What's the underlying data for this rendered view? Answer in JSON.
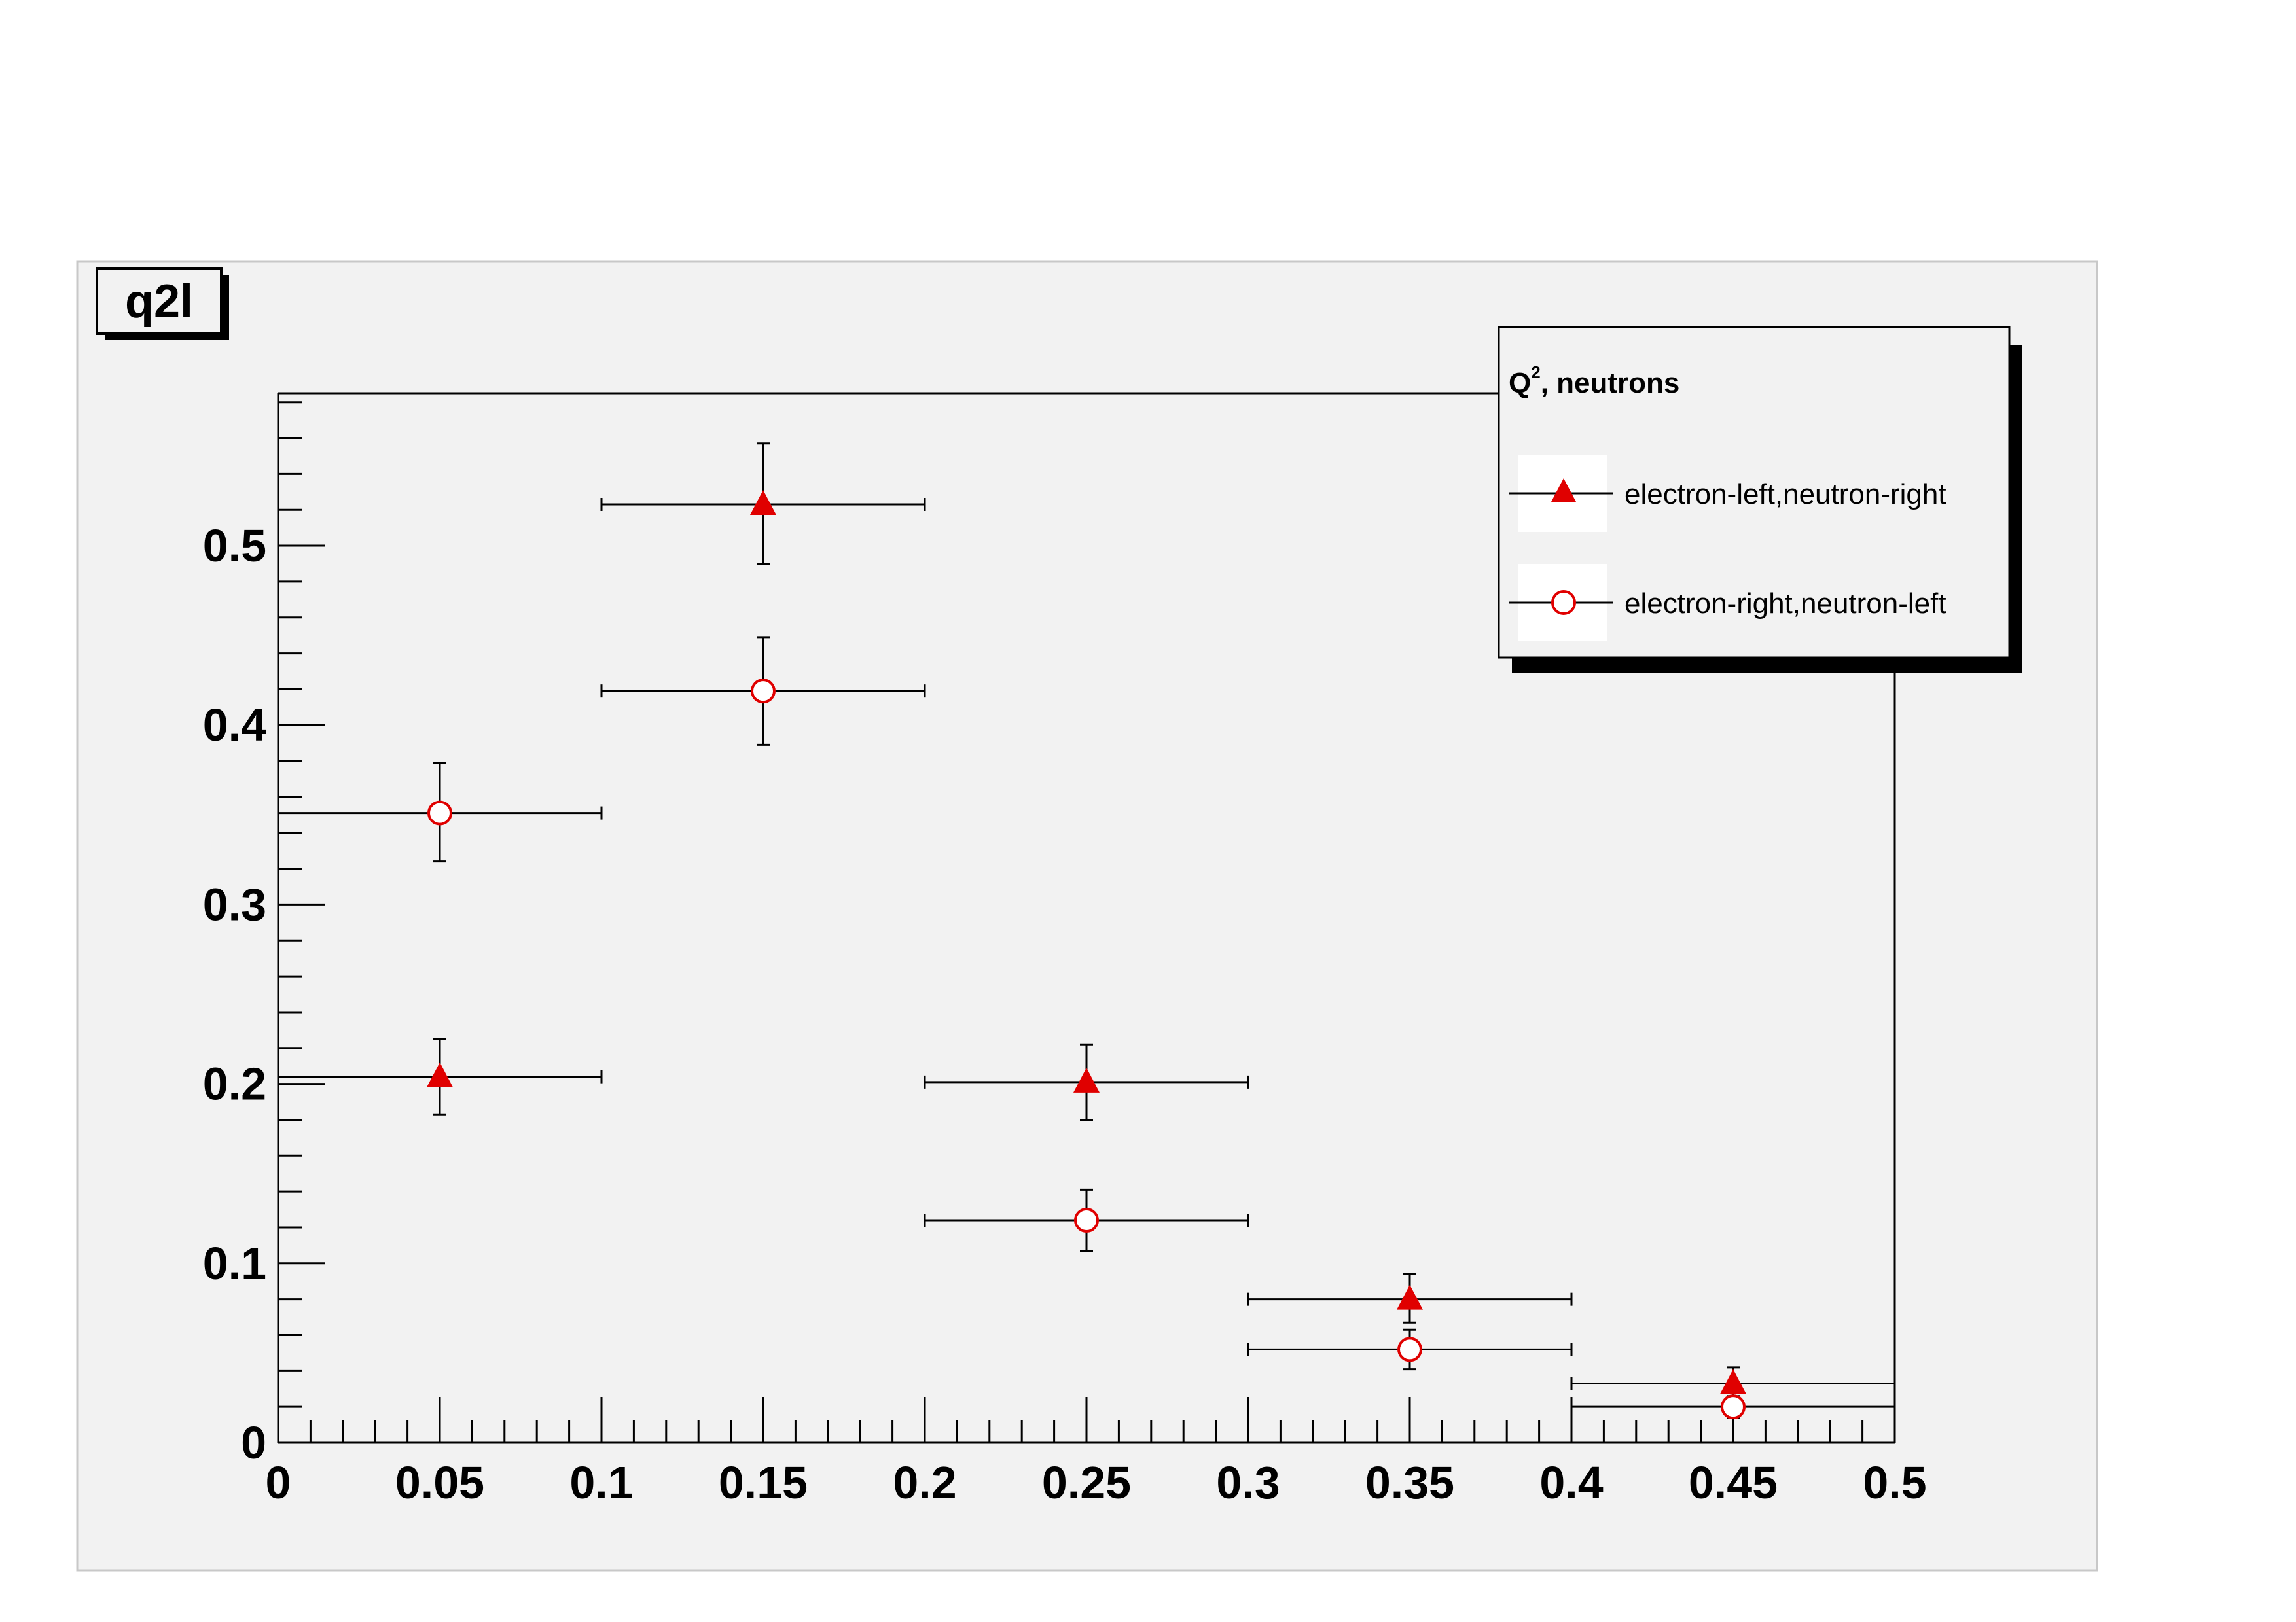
{
  "chart_data": {
    "type": "scatter",
    "title": "q2l",
    "xlabel": "",
    "ylabel": "",
    "xlim": [
      0,
      0.5
    ],
    "ylim": [
      0,
      0.585
    ],
    "grid": false,
    "x_ticks": [
      "0",
      "0.05",
      "0.1",
      "0.15",
      "0.2",
      "0.25",
      "0.3",
      "0.35",
      "0.4",
      "0.45",
      "0.5"
    ],
    "y_ticks": [
      "0",
      "0.1",
      "0.2",
      "0.3",
      "0.4",
      "0.5"
    ],
    "legend": {
      "position": "top-right",
      "header_main": "Q",
      "header_sup": "2",
      "header_rest": ", neutrons"
    },
    "series": [
      {
        "name": "electron-left,neutron-right",
        "marker": "filled-triangle",
        "color": "#e00000",
        "points": [
          {
            "x": 0.05,
            "y": 0.204,
            "xerr": 0.05,
            "yerr_lo": 0.021,
            "yerr_hi": 0.021
          },
          {
            "x": 0.15,
            "y": 0.523,
            "xerr": 0.05,
            "yerr_lo": 0.033,
            "yerr_hi": 0.034
          },
          {
            "x": 0.25,
            "y": 0.201,
            "xerr": 0.05,
            "yerr_lo": 0.021,
            "yerr_hi": 0.021
          },
          {
            "x": 0.35,
            "y": 0.08,
            "xerr": 0.05,
            "yerr_lo": 0.013,
            "yerr_hi": 0.014
          },
          {
            "x": 0.45,
            "y": 0.033,
            "xerr": 0.05,
            "yerr_lo": 0.008,
            "yerr_hi": 0.009
          }
        ]
      },
      {
        "name": "electron-right,neutron-left",
        "marker": "open-circle",
        "color": "#e00000",
        "points": [
          {
            "x": 0.05,
            "y": 0.351,
            "xerr": 0.05,
            "yerr_lo": 0.027,
            "yerr_hi": 0.028
          },
          {
            "x": 0.15,
            "y": 0.419,
            "xerr": 0.05,
            "yerr_lo": 0.03,
            "yerr_hi": 0.03
          },
          {
            "x": 0.25,
            "y": 0.124,
            "xerr": 0.05,
            "yerr_lo": 0.017,
            "yerr_hi": 0.017
          },
          {
            "x": 0.35,
            "y": 0.052,
            "xerr": 0.05,
            "yerr_lo": 0.011,
            "yerr_hi": 0.011
          },
          {
            "x": 0.45,
            "y": 0.02,
            "xerr": 0.05,
            "yerr_lo": 0.006,
            "yerr_hi": 0.006
          }
        ]
      }
    ],
    "colors": {
      "canvas": "#f2f2f2",
      "page": "#ffffff",
      "axis": "#000000",
      "marker": "#e00000"
    }
  }
}
